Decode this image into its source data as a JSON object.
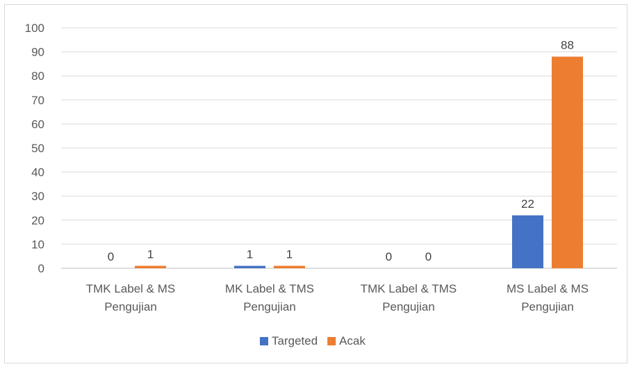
{
  "chart_data": {
    "type": "bar",
    "categories": [
      [
        "TMK Label & MS",
        "Pengujian"
      ],
      [
        "MK Label & TMS",
        "Pengujian"
      ],
      [
        "TMK Label & TMS",
        "Pengujian"
      ],
      [
        "MS Label & MS",
        "Pengujian"
      ]
    ],
    "series": [
      {
        "name": "Targeted",
        "color": "#4472c4",
        "values": [
          0,
          1,
          0,
          22
        ]
      },
      {
        "name": "Acak",
        "color": "#ed7d31",
        "values": [
          1,
          1,
          0,
          88
        ]
      }
    ],
    "ylim": [
      0,
      100
    ],
    "yticks": [
      0,
      10,
      20,
      30,
      40,
      50,
      60,
      70,
      80,
      90,
      100
    ],
    "grid": true,
    "legend": "bottom",
    "data_labels": true
  }
}
